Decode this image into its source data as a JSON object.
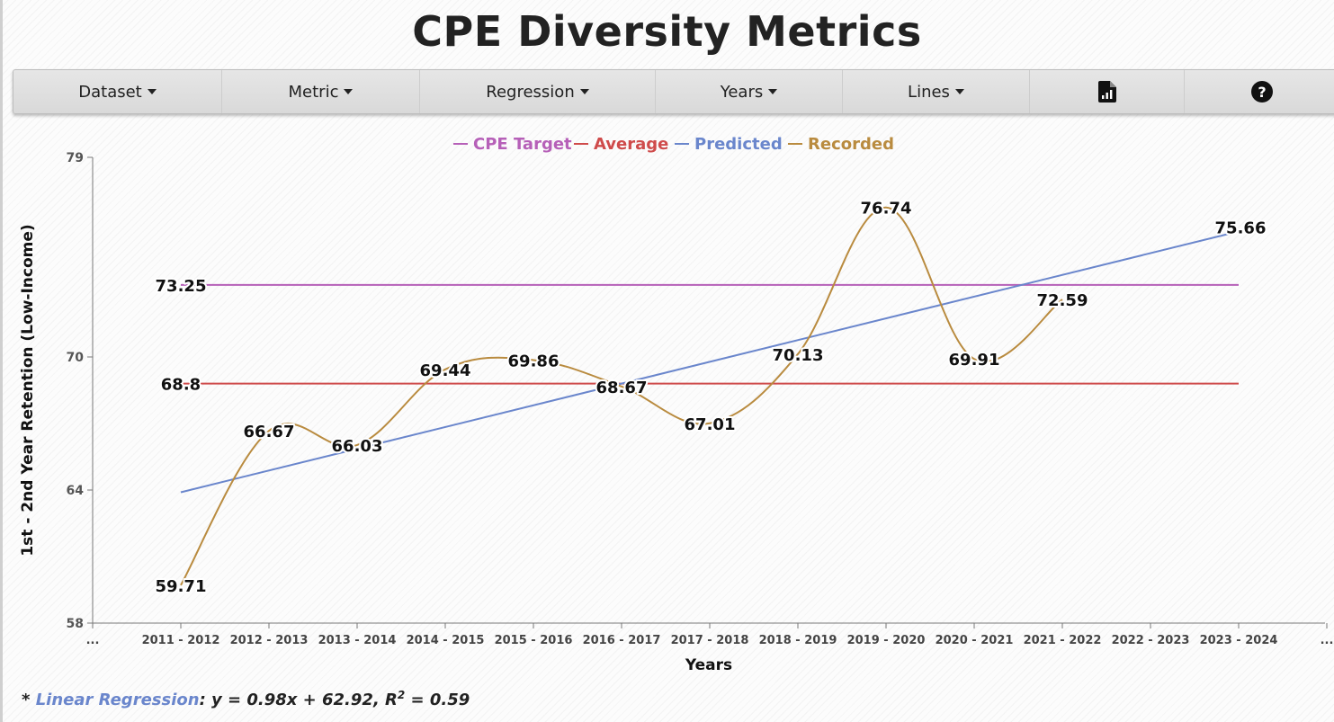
{
  "title": "CPE Diversity Metrics",
  "navbar": {
    "items": [
      "Dataset",
      "Metric",
      "Regression",
      "Years",
      "Lines"
    ],
    "report_icon": "report-chart-icon",
    "help_icon": "question-circle-icon",
    "help_glyph": "?"
  },
  "chart_data": {
    "type": "line",
    "xlabel": "Years",
    "ylabel": "1st - 2nd Year Retention (Low-Income)",
    "categories": [
      "...",
      "2011 - 2012",
      "2012 - 2013",
      "2013 - 2014",
      "2014 - 2015",
      "2015 - 2016",
      "2016 - 2017",
      "2017 - 2018",
      "2018 - 2019",
      "2019 - 2020",
      "2020 - 2021",
      "2021 - 2022",
      "2022 - 2023",
      "2023 - 2024",
      "..."
    ],
    "yticks": [
      58,
      64,
      70,
      79
    ],
    "ylim": [
      58,
      79
    ],
    "legend_position": "top-center",
    "grid": false,
    "series": [
      {
        "name": "CPE Target",
        "color": "#b660b8",
        "kind": "constant",
        "value": 73.25,
        "label": "73.25",
        "from": "2011 - 2012",
        "to": "2023 - 2024"
      },
      {
        "name": "Average",
        "color": "#cf4b4b",
        "kind": "constant",
        "value": 68.8,
        "label": "68.8",
        "from": "2011 - 2012",
        "to": "2023 - 2024"
      },
      {
        "name": "Predicted",
        "color": "#6a86cc",
        "kind": "linear",
        "x": [
          "2011 - 2012",
          "2023 - 2024"
        ],
        "values": [
          63.9,
          75.66
        ],
        "end_label": "75.66"
      },
      {
        "name": "Recorded",
        "color": "#b98b3f",
        "kind": "smooth",
        "x": [
          "2011 - 2012",
          "2012 - 2013",
          "2013 - 2014",
          "2014 - 2015",
          "2015 - 2016",
          "2016 - 2017",
          "2017 - 2018",
          "2018 - 2019",
          "2019 - 2020",
          "2020 - 2021",
          "2021 - 2022"
        ],
        "values": [
          59.71,
          66.67,
          66.03,
          69.44,
          69.86,
          68.67,
          67.01,
          70.13,
          76.74,
          69.91,
          72.59
        ],
        "labels": [
          "59.71",
          "66.67",
          "66.03",
          "69.44",
          "69.86",
          "68.67",
          "67.01",
          "70.13",
          "76.74",
          "69.91",
          "72.59"
        ]
      }
    ]
  },
  "footnote": {
    "prefix": "* ",
    "link": "Linear Regression",
    "formula": ": y = 0.98x + 62.92, R",
    "superscript": "2",
    "suffix": " = 0.59"
  }
}
